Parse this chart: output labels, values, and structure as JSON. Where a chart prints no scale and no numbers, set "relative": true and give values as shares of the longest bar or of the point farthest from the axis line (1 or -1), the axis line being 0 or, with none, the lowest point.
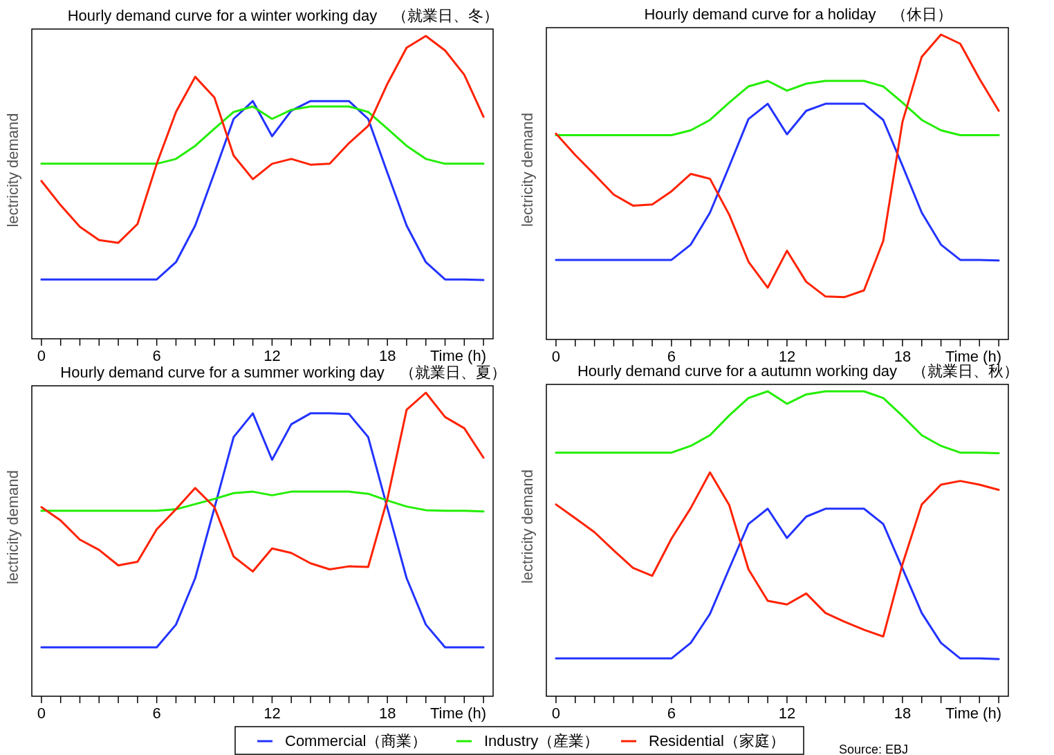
{
  "chart_data": [
    {
      "type": "line",
      "title": "Hourly demand curve for a winter working day　（就業日、冬）",
      "xlabel": "Time (h)",
      "ylabel": "lectricity demand",
      "relative": true,
      "xlim": [
        -0.5,
        23.5
      ],
      "xticks": [
        0,
        {
          "value": 1,
          "label": null
        },
        {
          "value": 2,
          "label": null
        },
        {
          "value": 3,
          "label": null
        },
        {
          "value": 4,
          "label": null
        },
        {
          "value": 5,
          "label": null
        },
        6,
        {
          "value": 7,
          "label": null
        },
        {
          "value": 8,
          "label": null
        },
        {
          "value": 9,
          "label": null
        },
        {
          "value": 10,
          "label": null
        },
        {
          "value": 11,
          "label": null
        },
        12,
        {
          "value": 13,
          "label": null
        },
        {
          "value": 14,
          "label": null
        },
        {
          "value": 15,
          "label": null
        },
        {
          "value": 16,
          "label": null
        },
        {
          "value": 17,
          "label": null
        },
        18,
        {
          "value": 19,
          "label": null
        },
        {
          "value": 20,
          "label": null
        },
        {
          "value": 21,
          "label": null
        },
        {
          "value": 22,
          "label": null
        },
        {
          "value": 23,
          "label": null
        }
      ],
      "x": [
        0,
        1,
        2,
        3,
        4,
        5,
        6,
        7,
        8,
        9,
        10,
        11,
        12,
        13,
        14,
        15,
        16,
        17,
        18,
        19,
        20,
        21,
        22,
        23
      ],
      "legend": "bottom",
      "series": [
        {
          "name": "Commercial（商業）",
          "color": "#2233ff",
          "values": [
            0.196,
            0.196,
            0.196,
            0.196,
            0.196,
            0.196,
            0.196,
            0.253,
            0.374,
            0.548,
            0.726,
            0.785,
            0.669,
            0.753,
            0.785,
            0.785,
            0.785,
            0.726,
            0.548,
            0.374,
            0.253,
            0.196,
            0.196,
            0.194
          ]
        },
        {
          "name": "Industry（産業）",
          "color": "#22ee00",
          "values": [
            0.578,
            0.578,
            0.578,
            0.578,
            0.578,
            0.578,
            0.578,
            0.594,
            0.637,
            0.694,
            0.749,
            0.767,
            0.726,
            0.756,
            0.767,
            0.767,
            0.767,
            0.749,
            0.694,
            0.637,
            0.594,
            0.578,
            0.578,
            0.578
          ]
        },
        {
          "name": "Residential（家庭）",
          "color": "#ff2200",
          "values": [
            0.521,
            0.441,
            0.37,
            0.326,
            0.317,
            0.379,
            0.578,
            0.749,
            0.865,
            0.797,
            0.605,
            0.527,
            0.578,
            0.594,
            0.575,
            0.578,
            0.646,
            0.703,
            0.842,
            0.961,
            1,
            0.952,
            0.872,
            0.733
          ]
        }
      ]
    },
    {
      "type": "line",
      "title": "Hourly demand curve for a holiday　（休日）",
      "xlabel": "Time (h)",
      "ylabel": "lectricity demand",
      "relative": true,
      "xlim": [
        -0.5,
        23.5
      ],
      "xticks": [
        0,
        {
          "value": 1,
          "label": null
        },
        {
          "value": 2,
          "label": null
        },
        {
          "value": 3,
          "label": null
        },
        {
          "value": 4,
          "label": null
        },
        {
          "value": 5,
          "label": null
        },
        6,
        {
          "value": 7,
          "label": null
        },
        {
          "value": 8,
          "label": null
        },
        {
          "value": 9,
          "label": null
        },
        {
          "value": 10,
          "label": null
        },
        {
          "value": 11,
          "label": null
        },
        12,
        {
          "value": 13,
          "label": null
        },
        {
          "value": 14,
          "label": null
        },
        {
          "value": 15,
          "label": null
        },
        {
          "value": 16,
          "label": null
        },
        {
          "value": 17,
          "label": null
        },
        18,
        {
          "value": 19,
          "label": null
        },
        {
          "value": 20,
          "label": null
        },
        {
          "value": 21,
          "label": null
        },
        {
          "value": 22,
          "label": null
        },
        {
          "value": 23,
          "label": null
        }
      ],
      "x": [
        0,
        1,
        2,
        3,
        4,
        5,
        6,
        7,
        8,
        9,
        10,
        11,
        12,
        13,
        14,
        15,
        16,
        17,
        18,
        19,
        20,
        21,
        22,
        23
      ],
      "series": [
        {
          "color": "#2233ff",
          "values": [
            0.261,
            0.261,
            0.261,
            0.261,
            0.261,
            0.261,
            0.261,
            0.311,
            0.416,
            0.568,
            0.723,
            0.773,
            0.673,
            0.75,
            0.773,
            0.773,
            0.773,
            0.72,
            0.57,
            0.416,
            0.311,
            0.261,
            0.261,
            0.259
          ]
        },
        {
          "color": "#22ee00",
          "values": [
            0.67,
            0.67,
            0.67,
            0.67,
            0.67,
            0.67,
            0.67,
            0.686,
            0.72,
            0.777,
            0.83,
            0.848,
            0.816,
            0.839,
            0.848,
            0.848,
            0.848,
            0.83,
            0.777,
            0.72,
            0.686,
            0.67,
            0.67,
            0.67
          ]
        },
        {
          "color": "#ff2200",
          "values": [
            0.675,
            0.605,
            0.541,
            0.475,
            0.439,
            0.443,
            0.486,
            0.543,
            0.527,
            0.409,
            0.255,
            0.17,
            0.291,
            0.189,
            0.141,
            0.139,
            0.161,
            0.323,
            0.714,
            0.927,
            1,
            0.97,
            0.855,
            0.75
          ]
        }
      ]
    },
    {
      "type": "line",
      "title": "Hourly demand curve for a summer working day　（就業日、夏）",
      "xlabel": "Time (h)",
      "ylabel": "lectricity demand",
      "relative": true,
      "xlim": [
        -0.5,
        23.5
      ],
      "xticks": [
        0,
        {
          "value": 1,
          "label": null
        },
        {
          "value": 2,
          "label": null
        },
        {
          "value": 3,
          "label": null
        },
        {
          "value": 4,
          "label": null
        },
        {
          "value": 5,
          "label": null
        },
        6,
        {
          "value": 7,
          "label": null
        },
        {
          "value": 8,
          "label": null
        },
        {
          "value": 9,
          "label": null
        },
        {
          "value": 10,
          "label": null
        },
        {
          "value": 11,
          "label": null
        },
        12,
        {
          "value": 13,
          "label": null
        },
        {
          "value": 14,
          "label": null
        },
        {
          "value": 15,
          "label": null
        },
        {
          "value": 16,
          "label": null
        },
        {
          "value": 17,
          "label": null
        },
        18,
        {
          "value": 19,
          "label": null
        },
        {
          "value": 20,
          "label": null
        },
        {
          "value": 21,
          "label": null
        },
        {
          "value": 22,
          "label": null
        },
        {
          "value": 23,
          "label": null
        }
      ],
      "x": [
        0,
        1,
        2,
        3,
        4,
        5,
        6,
        7,
        8,
        9,
        10,
        11,
        12,
        13,
        14,
        15,
        16,
        17,
        18,
        19,
        20,
        21,
        22,
        23
      ],
      "series": [
        {
          "color": "#2233ff",
          "values": [
            0.161,
            0.161,
            0.161,
            0.161,
            0.161,
            0.161,
            0.161,
            0.236,
            0.389,
            0.62,
            0.854,
            0.932,
            0.779,
            0.896,
            0.932,
            0.932,
            0.93,
            0.854,
            0.62,
            0.389,
            0.236,
            0.161,
            0.161,
            0.161
          ]
        },
        {
          "color": "#22ee00",
          "values": [
            0.611,
            0.611,
            0.611,
            0.611,
            0.611,
            0.611,
            0.611,
            0.616,
            0.633,
            0.65,
            0.669,
            0.674,
            0.662,
            0.674,
            0.674,
            0.674,
            0.674,
            0.667,
            0.645,
            0.625,
            0.613,
            0.611,
            0.611,
            0.609
          ]
        },
        {
          "color": "#ff2200",
          "values": [
            0.623,
            0.579,
            0.516,
            0.482,
            0.431,
            0.443,
            0.55,
            0.616,
            0.686,
            0.623,
            0.46,
            0.411,
            0.487,
            0.472,
            0.438,
            0.418,
            0.428,
            0.426,
            0.65,
            0.944,
            1,
            0.92,
            0.883,
            0.786
          ]
        }
      ]
    },
    {
      "type": "line",
      "title": "Hourly demand curve for a autumn working day　（就業日、秋）",
      "xlabel": "Time (h)",
      "ylabel": "lectricity demand",
      "relative": true,
      "xlim": [
        -0.5,
        23.5
      ],
      "xticks": [
        0,
        {
          "value": 1,
          "label": null
        },
        {
          "value": 2,
          "label": null
        },
        {
          "value": 3,
          "label": null
        },
        {
          "value": 4,
          "label": null
        },
        {
          "value": 5,
          "label": null
        },
        6,
        {
          "value": 7,
          "label": null
        },
        {
          "value": 8,
          "label": null
        },
        {
          "value": 9,
          "label": null
        },
        {
          "value": 10,
          "label": null
        },
        {
          "value": 11,
          "label": null
        },
        12,
        {
          "value": 13,
          "label": null
        },
        {
          "value": 14,
          "label": null
        },
        {
          "value": 15,
          "label": null
        },
        {
          "value": 16,
          "label": null
        },
        {
          "value": 17,
          "label": null
        },
        18,
        {
          "value": 19,
          "label": null
        },
        {
          "value": 20,
          "label": null
        },
        {
          "value": 21,
          "label": null
        },
        {
          "value": 22,
          "label": null
        },
        {
          "value": 23,
          "label": null
        }
      ],
      "x": [
        0,
        1,
        2,
        3,
        4,
        5,
        6,
        7,
        8,
        9,
        10,
        11,
        12,
        13,
        14,
        15,
        16,
        17,
        18,
        19,
        20,
        21,
        22,
        23
      ],
      "annotations": [
        "Source: EBJ"
      ],
      "series": [
        {
          "color": "#2233ff",
          "values": [
            0.124,
            0.124,
            0.124,
            0.124,
            0.124,
            0.124,
            0.124,
            0.175,
            0.27,
            0.419,
            0.565,
            0.615,
            0.519,
            0.589,
            0.615,
            0.615,
            0.615,
            0.565,
            0.419,
            0.273,
            0.175,
            0.124,
            0.124,
            0.122
          ]
        },
        {
          "color": "#22ee00",
          "values": [
            0.799,
            0.799,
            0.799,
            0.799,
            0.799,
            0.799,
            0.799,
            0.821,
            0.856,
            0.921,
            0.978,
            1,
            0.959,
            0.99,
            1,
            1,
            1,
            0.978,
            0.919,
            0.856,
            0.821,
            0.799,
            0.799,
            0.797
          ]
        },
        {
          "color": "#ff2200",
          "values": [
            0.629,
            0.584,
            0.538,
            0.478,
            0.421,
            0.395,
            0.517,
            0.617,
            0.734,
            0.627,
            0.416,
            0.313,
            0.301,
            0.337,
            0.273,
            0.244,
            0.218,
            0.196,
            0.433,
            0.629,
            0.694,
            0.706,
            0.694,
            0.677
          ]
        }
      ]
    }
  ]
}
